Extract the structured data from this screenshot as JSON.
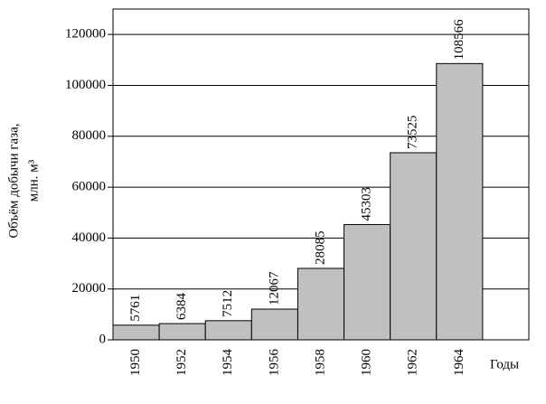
{
  "chart_data": {
    "type": "bar",
    "y_label": [
      "Объём добычи газа,",
      "млн. м³"
    ],
    "x_label": "Годы",
    "categories": [
      "1950",
      "1952",
      "1954",
      "1956",
      "1958",
      "1960",
      "1962",
      "1964"
    ],
    "values": [
      5761,
      6384,
      7512,
      12067,
      28085,
      45303,
      73525,
      108566
    ],
    "color": "#c0c0c0",
    "ylim": [
      0,
      130000
    ],
    "yticks": [
      0,
      20000,
      40000,
      60000,
      80000,
      100000,
      120000
    ],
    "grid": true
  }
}
